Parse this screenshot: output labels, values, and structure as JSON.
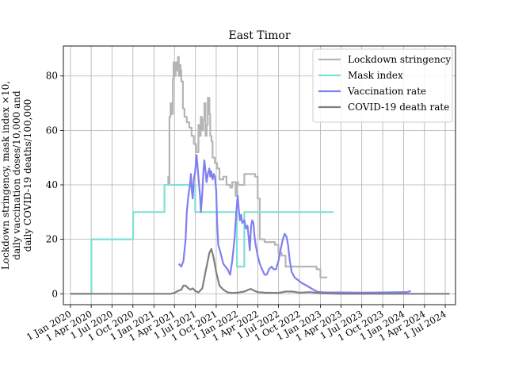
{
  "chart_data": {
    "type": "line",
    "title": "East Timor",
    "xlabel": "",
    "ylabel": "Lockdown stringency, mask index ×10,\ndaily vaccination doses/10,000 and\ndaily COVID-19 deaths/100,000",
    "xlim": [
      "2019-12-01",
      "2024-08-15"
    ],
    "ylim": [
      -4,
      91
    ],
    "grid": true,
    "legend_position": "top-right",
    "x_ticks": [
      "2020-01-01",
      "2020-04-01",
      "2020-07-01",
      "2020-10-01",
      "2021-01-01",
      "2021-04-01",
      "2021-07-01",
      "2021-10-01",
      "2022-01-01",
      "2022-04-01",
      "2022-07-01",
      "2022-10-01",
      "2023-01-01",
      "2023-04-01",
      "2023-07-01",
      "2023-10-01",
      "2024-01-01",
      "2024-04-01",
      "2024-07-01"
    ],
    "x_tick_labels": [
      "1 Jan 2020",
      "1 Apr 2020",
      "1 Jul 2020",
      "1 Oct 2020",
      "1 Jan 2021",
      "1 Apr 2021",
      "1 Jul 2021",
      "1 Oct 2021",
      "1 Jan 2022",
      "1 Apr 2022",
      "1 Jul 2022",
      "1 Oct 2022",
      "1 Jan 2023",
      "1 Apr 2023",
      "1 Jul 2023",
      "1 Oct 2023",
      "1 Jan 2024",
      "1 Apr 2024",
      "1 Jul 2024"
    ],
    "y_ticks": [
      0,
      20,
      40,
      60,
      80
    ],
    "y_tick_labels": [
      "0",
      "20",
      "40",
      "60",
      "80"
    ],
    "series": [
      {
        "name": "Lockdown stringency",
        "color": "#b5b5b5",
        "step": true,
        "points": [
          [
            "2021-03-01",
            43
          ],
          [
            "2021-03-05",
            40
          ],
          [
            "2021-03-10",
            65
          ],
          [
            "2021-03-15",
            70
          ],
          [
            "2021-03-20",
            66
          ],
          [
            "2021-03-25",
            79
          ],
          [
            "2021-03-28",
            85
          ],
          [
            "2021-04-02",
            80
          ],
          [
            "2021-04-06",
            85
          ],
          [
            "2021-04-12",
            82
          ],
          [
            "2021-04-16",
            87
          ],
          [
            "2021-04-20",
            80
          ],
          [
            "2021-04-24",
            84
          ],
          [
            "2021-04-28",
            82
          ],
          [
            "2021-05-01",
            78
          ],
          [
            "2021-05-08",
            68
          ],
          [
            "2021-05-15",
            65
          ],
          [
            "2021-05-25",
            63
          ],
          [
            "2021-06-05",
            61
          ],
          [
            "2021-06-15",
            58
          ],
          [
            "2021-06-25",
            55
          ],
          [
            "2021-07-05",
            52
          ],
          [
            "2021-07-15",
            62
          ],
          [
            "2021-07-20",
            58
          ],
          [
            "2021-07-25",
            65
          ],
          [
            "2021-07-30",
            60
          ],
          [
            "2021-08-05",
            64
          ],
          [
            "2021-08-10",
            70
          ],
          [
            "2021-08-15",
            58
          ],
          [
            "2021-08-20",
            62
          ],
          [
            "2021-08-25",
            72
          ],
          [
            "2021-09-01",
            66
          ],
          [
            "2021-09-05",
            58
          ],
          [
            "2021-09-10",
            56
          ],
          [
            "2021-09-15",
            50
          ],
          [
            "2021-09-25",
            48
          ],
          [
            "2021-10-05",
            46
          ],
          [
            "2021-10-15",
            42
          ],
          [
            "2021-11-01",
            43
          ],
          [
            "2021-11-15",
            40
          ],
          [
            "2021-12-01",
            39
          ],
          [
            "2021-12-10",
            41
          ],
          [
            "2021-12-25",
            36
          ],
          [
            "2022-01-01",
            41
          ],
          [
            "2022-01-05",
            40
          ],
          [
            "2022-02-01",
            44
          ],
          [
            "2022-03-20",
            43
          ],
          [
            "2022-04-01",
            35
          ],
          [
            "2022-04-10",
            20
          ],
          [
            "2022-05-01",
            19
          ],
          [
            "2022-06-15",
            18
          ],
          [
            "2022-07-01",
            15
          ],
          [
            "2022-07-15",
            14
          ],
          [
            "2022-08-01",
            10
          ],
          [
            "2022-12-15",
            9
          ],
          [
            "2023-01-01",
            6
          ],
          [
            "2023-01-31",
            6
          ]
        ]
      },
      {
        "name": "Mask index",
        "color": "#7fdfd4",
        "step": true,
        "points": [
          [
            "2020-01-01",
            0
          ],
          [
            "2020-04-01",
            0
          ],
          [
            "2020-04-02",
            20
          ],
          [
            "2020-10-01",
            20
          ],
          [
            "2020-10-02",
            30
          ],
          [
            "2021-02-15",
            30
          ],
          [
            "2021-02-16",
            40
          ],
          [
            "2021-06-30",
            40
          ],
          [
            "2021-07-01",
            30
          ],
          [
            "2021-12-30",
            30
          ],
          [
            "2021-12-31",
            10
          ],
          [
            "2022-01-31",
            10
          ],
          [
            "2022-02-01",
            30
          ],
          [
            "2023-02-28",
            30
          ]
        ]
      },
      {
        "name": "Vaccination rate",
        "color": "#7f7ff2",
        "step": false,
        "points": [
          [
            "2021-04-20",
            11
          ],
          [
            "2021-05-01",
            10
          ],
          [
            "2021-05-10",
            12
          ],
          [
            "2021-05-20",
            20
          ],
          [
            "2021-05-25",
            30
          ],
          [
            "2021-06-01",
            36
          ],
          [
            "2021-06-08",
            40
          ],
          [
            "2021-06-12",
            44
          ],
          [
            "2021-06-16",
            38
          ],
          [
            "2021-06-20",
            35
          ],
          [
            "2021-06-25",
            42
          ],
          [
            "2021-07-01",
            45
          ],
          [
            "2021-07-07",
            51
          ],
          [
            "2021-07-12",
            46
          ],
          [
            "2021-07-18",
            40
          ],
          [
            "2021-07-22",
            36
          ],
          [
            "2021-07-26",
            30
          ],
          [
            "2021-08-01",
            37
          ],
          [
            "2021-08-06",
            45
          ],
          [
            "2021-08-10",
            49
          ],
          [
            "2021-08-14",
            46
          ],
          [
            "2021-08-20",
            41
          ],
          [
            "2021-08-25",
            44
          ],
          [
            "2021-09-01",
            46
          ],
          [
            "2021-09-05",
            43
          ],
          [
            "2021-09-09",
            45
          ],
          [
            "2021-09-15",
            42
          ],
          [
            "2021-09-20",
            44
          ],
          [
            "2021-09-25",
            43
          ],
          [
            "2021-10-01",
            38
          ],
          [
            "2021-10-05",
            26
          ],
          [
            "2021-10-10",
            18
          ],
          [
            "2021-10-20",
            15
          ],
          [
            "2021-11-01",
            11
          ],
          [
            "2021-11-10",
            10
          ],
          [
            "2021-11-20",
            9
          ],
          [
            "2021-12-01",
            7
          ],
          [
            "2021-12-10",
            12
          ],
          [
            "2021-12-20",
            20
          ],
          [
            "2021-12-28",
            30
          ],
          [
            "2022-01-03",
            36
          ],
          [
            "2022-01-08",
            31
          ],
          [
            "2022-01-13",
            27
          ],
          [
            "2022-01-18",
            29
          ],
          [
            "2022-01-23",
            26
          ],
          [
            "2022-02-01",
            27
          ],
          [
            "2022-02-08",
            24
          ],
          [
            "2022-02-15",
            25
          ],
          [
            "2022-02-20",
            21
          ],
          [
            "2022-02-25",
            16
          ],
          [
            "2022-03-03",
            25
          ],
          [
            "2022-03-08",
            27
          ],
          [
            "2022-03-13",
            26
          ],
          [
            "2022-03-18",
            21
          ],
          [
            "2022-03-23",
            18
          ],
          [
            "2022-04-01",
            14
          ],
          [
            "2022-04-10",
            11
          ],
          [
            "2022-04-20",
            9
          ],
          [
            "2022-05-01",
            7
          ],
          [
            "2022-05-10",
            7
          ],
          [
            "2022-05-20",
            9
          ],
          [
            "2022-06-01",
            10
          ],
          [
            "2022-06-10",
            9
          ],
          [
            "2022-06-20",
            9
          ],
          [
            "2022-07-01",
            12
          ],
          [
            "2022-07-10",
            16
          ],
          [
            "2022-07-20",
            20
          ],
          [
            "2022-07-28",
            22
          ],
          [
            "2022-08-05",
            21
          ],
          [
            "2022-08-12",
            18
          ],
          [
            "2022-08-20",
            12
          ],
          [
            "2022-08-28",
            8
          ],
          [
            "2022-09-10",
            6
          ],
          [
            "2022-09-25",
            5
          ],
          [
            "2022-10-10",
            4
          ],
          [
            "2022-11-01",
            3
          ],
          [
            "2022-12-01",
            1.5
          ],
          [
            "2022-12-20",
            0.7
          ],
          [
            "2023-01-20",
            0.5
          ],
          [
            "2023-04-01",
            0.5
          ],
          [
            "2023-07-01",
            0.4
          ],
          [
            "2023-10-01",
            0.5
          ],
          [
            "2024-01-15",
            0.6
          ],
          [
            "2024-02-01",
            1
          ]
        ]
      },
      {
        "name": "COVID-19 death rate",
        "color": "#7f7f7f",
        "step": false,
        "points": [
          [
            "2020-01-01",
            0
          ],
          [
            "2021-01-01",
            0
          ],
          [
            "2021-03-15",
            0
          ],
          [
            "2021-04-01",
            0.3
          ],
          [
            "2021-04-15",
            1
          ],
          [
            "2021-05-01",
            1.5
          ],
          [
            "2021-05-10",
            3
          ],
          [
            "2021-05-20",
            3
          ],
          [
            "2021-06-01",
            2
          ],
          [
            "2021-06-10",
            1.5
          ],
          [
            "2021-06-20",
            2
          ],
          [
            "2021-07-01",
            1
          ],
          [
            "2021-07-15",
            0.5
          ],
          [
            "2021-08-01",
            2
          ],
          [
            "2021-08-15",
            8
          ],
          [
            "2021-09-01",
            15
          ],
          [
            "2021-09-10",
            16.5
          ],
          [
            "2021-09-20",
            13
          ],
          [
            "2021-10-01",
            8
          ],
          [
            "2021-10-15",
            3
          ],
          [
            "2021-11-01",
            1.5
          ],
          [
            "2021-11-20",
            0.5
          ],
          [
            "2021-12-10",
            0.3
          ],
          [
            "2022-01-01",
            0.4
          ],
          [
            "2022-02-01",
            0.8
          ],
          [
            "2022-02-20",
            1.5
          ],
          [
            "2022-03-01",
            1.8
          ],
          [
            "2022-03-15",
            1.2
          ],
          [
            "2022-04-01",
            0.6
          ],
          [
            "2022-05-01",
            0.4
          ],
          [
            "2022-07-01",
            0.3
          ],
          [
            "2022-08-01",
            0.8
          ],
          [
            "2022-09-01",
            0.8
          ],
          [
            "2022-10-01",
            0.4
          ],
          [
            "2022-11-15",
            0.6
          ],
          [
            "2023-01-01",
            0.2
          ],
          [
            "2023-04-01",
            0
          ],
          [
            "2024-07-20",
            0
          ]
        ]
      }
    ]
  }
}
